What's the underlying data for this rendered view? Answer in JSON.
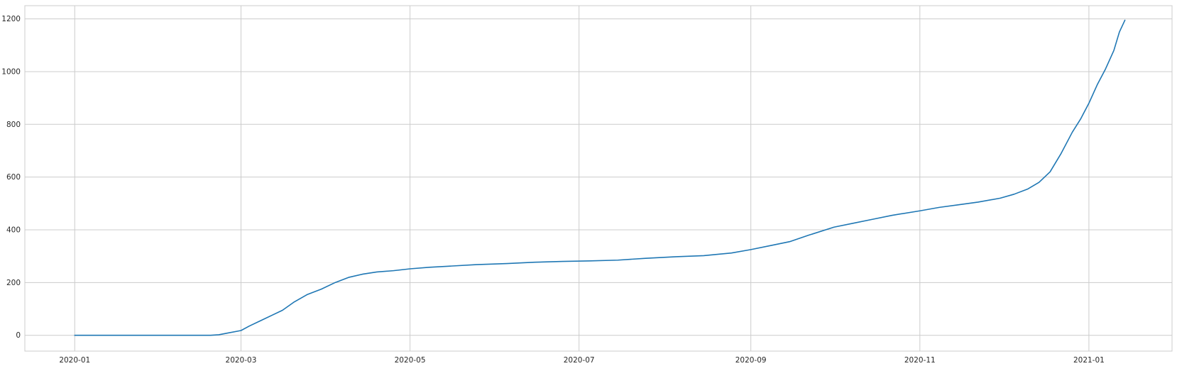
{
  "chart_data": {
    "type": "line",
    "title": "",
    "xlabel": "",
    "ylabel": "",
    "grid": true,
    "xlim": [
      "2019-12-14",
      "2021-01-31"
    ],
    "ylim": [
      -60,
      1250
    ],
    "x_ticks": [
      "2020-01-01",
      "2020-03-01",
      "2020-05-01",
      "2020-07-01",
      "2020-09-01",
      "2020-11-01",
      "2021-01-01"
    ],
    "x_tick_labels": [
      "2020-01",
      "2020-03",
      "2020-05",
      "2020-07",
      "2020-09",
      "2020-11",
      "2021-01"
    ],
    "y_ticks": [
      0,
      200,
      400,
      600,
      800,
      1000,
      1200
    ],
    "y_tick_labels": [
      "0",
      "200",
      "400",
      "600",
      "800",
      "1000",
      "1200"
    ],
    "colors": {
      "line": "#1f77b4",
      "grid": "#cccccc",
      "frame": "#cccccc",
      "text": "#262626"
    },
    "series": [
      {
        "x": [
          "2020-01-01",
          "2020-02-19",
          "2020-02-22",
          "2020-02-25",
          "2020-03-01",
          "2020-03-04",
          "2020-03-08",
          "2020-03-12",
          "2020-03-16",
          "2020-03-20",
          "2020-03-25",
          "2020-03-30",
          "2020-04-04",
          "2020-04-09",
          "2020-04-14",
          "2020-04-19",
          "2020-04-25",
          "2020-05-01",
          "2020-05-08",
          "2020-05-15",
          "2020-05-25",
          "2020-06-05",
          "2020-06-15",
          "2020-06-25",
          "2020-07-05",
          "2020-07-15",
          "2020-07-25",
          "2020-08-05",
          "2020-08-15",
          "2020-08-25",
          "2020-09-01",
          "2020-09-08",
          "2020-09-15",
          "2020-09-22",
          "2020-10-01",
          "2020-10-08",
          "2020-10-15",
          "2020-10-22",
          "2020-11-01",
          "2020-11-08",
          "2020-11-15",
          "2020-11-22",
          "2020-11-30",
          "2020-12-05",
          "2020-12-10",
          "2020-12-14",
          "2020-12-18",
          "2020-12-22",
          "2020-12-26",
          "2020-12-29",
          "2021-01-01",
          "2021-01-04",
          "2021-01-07",
          "2021-01-10",
          "2021-01-12",
          "2021-01-14"
        ],
        "values": [
          0,
          0,
          2,
          8,
          18,
          35,
          55,
          75,
          95,
          125,
          155,
          175,
          200,
          220,
          232,
          240,
          245,
          252,
          258,
          262,
          268,
          272,
          277,
          280,
          282,
          285,
          292,
          298,
          302,
          312,
          325,
          340,
          355,
          380,
          410,
          425,
          440,
          455,
          472,
          485,
          495,
          505,
          520,
          535,
          555,
          580,
          620,
          690,
          770,
          820,
          880,
          950,
          1010,
          1080,
          1150,
          1195
        ]
      }
    ]
  }
}
